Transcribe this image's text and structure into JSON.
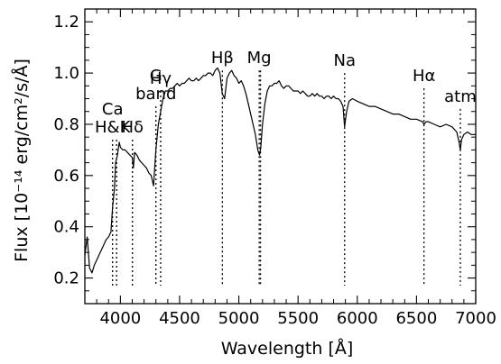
{
  "chart_data": {
    "type": "line",
    "title": "",
    "xlabel": "Wavelength [Å]",
    "ylabel": "Flux [10⁻¹⁴ erg/cm²/s/Å]",
    "xlim": [
      3700,
      7000
    ],
    "ylim": [
      0.1,
      1.25
    ],
    "grid": false,
    "line_color": "#000000",
    "x_ticks": [
      4000,
      4500,
      5000,
      5500,
      6000,
      6500,
      7000
    ],
    "y_ticks": [
      0.2,
      0.4,
      0.6,
      0.8,
      1.0,
      1.2
    ],
    "series": [
      {
        "x": [
          3700,
          3720,
          3740,
          3760,
          3780,
          3800,
          3820,
          3840,
          3860,
          3880,
          3900,
          3920,
          3935,
          3950,
          3960,
          3975,
          3990,
          4000,
          4020,
          4040,
          4060,
          4080,
          4100,
          4110,
          4120,
          4140,
          4160,
          4180,
          4200,
          4220,
          4240,
          4260,
          4280,
          4300,
          4320,
          4340,
          4360,
          4380,
          4400,
          4420,
          4440,
          4460,
          4480,
          4500,
          4520,
          4540,
          4560,
          4580,
          4600,
          4620,
          4640,
          4660,
          4680,
          4700,
          4720,
          4740,
          4760,
          4780,
          4800,
          4820,
          4840,
          4860,
          4880,
          4900,
          4920,
          4940,
          4960,
          4980,
          5000,
          5020,
          5040,
          5060,
          5080,
          5100,
          5120,
          5140,
          5160,
          5175,
          5185,
          5200,
          5220,
          5240,
          5260,
          5280,
          5300,
          5320,
          5340,
          5360,
          5380,
          5400,
          5420,
          5440,
          5460,
          5480,
          5500,
          5520,
          5540,
          5560,
          5580,
          5600,
          5620,
          5640,
          5660,
          5680,
          5700,
          5720,
          5740,
          5760,
          5780,
          5800,
          5820,
          5840,
          5860,
          5880,
          5893,
          5910,
          5930,
          5960,
          6000,
          6050,
          6100,
          6150,
          6200,
          6250,
          6300,
          6350,
          6400,
          6450,
          6500,
          6550,
          6563,
          6580,
          6600,
          6650,
          6700,
          6750,
          6800,
          6840,
          6860,
          6870,
          6880,
          6900,
          6930,
          6960,
          7000
        ],
        "y": [
          0.29,
          0.36,
          0.24,
          0.22,
          0.25,
          0.27,
          0.29,
          0.31,
          0.33,
          0.35,
          0.36,
          0.38,
          0.48,
          0.55,
          0.65,
          0.68,
          0.73,
          0.71,
          0.7,
          0.7,
          0.69,
          0.68,
          0.67,
          0.63,
          0.69,
          0.68,
          0.66,
          0.65,
          0.64,
          0.63,
          0.61,
          0.6,
          0.56,
          0.7,
          0.8,
          0.85,
          0.9,
          0.93,
          0.93,
          0.94,
          0.94,
          0.95,
          0.96,
          0.95,
          0.96,
          0.96,
          0.97,
          0.98,
          0.97,
          0.97,
          0.98,
          0.97,
          0.98,
          0.99,
          0.99,
          1.0,
          1.0,
          0.99,
          1.01,
          1.02,
          1.0,
          0.92,
          0.9,
          0.98,
          1.0,
          1.01,
          0.99,
          0.98,
          0.96,
          0.97,
          0.95,
          0.92,
          0.88,
          0.84,
          0.8,
          0.76,
          0.7,
          0.68,
          0.71,
          0.8,
          0.88,
          0.93,
          0.95,
          0.95,
          0.96,
          0.96,
          0.97,
          0.95,
          0.94,
          0.95,
          0.95,
          0.94,
          0.93,
          0.93,
          0.93,
          0.92,
          0.93,
          0.92,
          0.91,
          0.91,
          0.92,
          0.91,
          0.92,
          0.91,
          0.91,
          0.9,
          0.91,
          0.91,
          0.9,
          0.91,
          0.9,
          0.9,
          0.89,
          0.87,
          0.79,
          0.85,
          0.89,
          0.9,
          0.89,
          0.88,
          0.87,
          0.87,
          0.86,
          0.85,
          0.84,
          0.84,
          0.83,
          0.82,
          0.82,
          0.81,
          0.8,
          0.81,
          0.81,
          0.8,
          0.79,
          0.8,
          0.79,
          0.77,
          0.73,
          0.7,
          0.74,
          0.76,
          0.77,
          0.76,
          0.76
        ]
      }
    ],
    "annotations": [
      {
        "x": 3934,
        "lines": [
          "Ca",
          "H&K"
        ],
        "ltop": 0.74,
        "lbot": 0.17
      },
      {
        "x": 3968,
        "lines": [],
        "ltop": 0.74,
        "lbot": 0.17
      },
      {
        "x": 4102,
        "lines": [
          "Hδ"
        ],
        "ltop": 0.74,
        "lbot": 0.17
      },
      {
        "x": 4300,
        "lines": [
          "G",
          "band"
        ],
        "ltop": 0.87,
        "lbot": 0.17
      },
      {
        "x": 4340,
        "lines": [
          "Hγ"
        ],
        "ltop": 0.93,
        "lbot": 0.17
      },
      {
        "x": 4861,
        "lines": [
          "Hβ"
        ],
        "ltop": 1.01,
        "lbot": 0.17
      },
      {
        "x": 5172,
        "lines": [
          "Mg"
        ],
        "ltop": 1.01,
        "lbot": 0.17
      },
      {
        "x": 5183,
        "lines": [],
        "ltop": 1.01,
        "lbot": 0.17
      },
      {
        "x": 5893,
        "lines": [
          "Na"
        ],
        "ltop": 1.0,
        "lbot": 0.17
      },
      {
        "x": 6563,
        "lines": [
          "Hα"
        ],
        "ltop": 0.94,
        "lbot": 0.17
      },
      {
        "x": 6870,
        "lines": [
          "atm"
        ],
        "ltop": 0.86,
        "lbot": 0.17
      }
    ]
  }
}
